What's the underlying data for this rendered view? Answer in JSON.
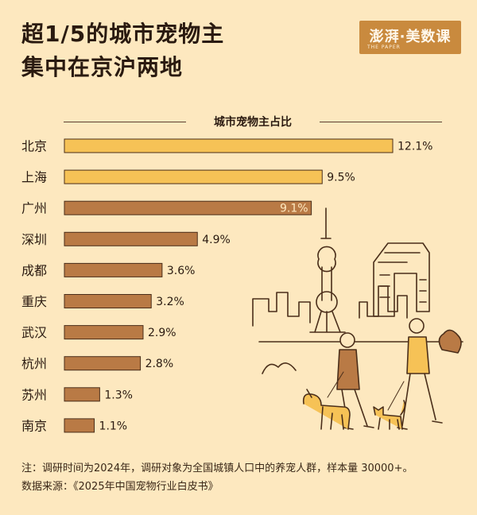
{
  "header": {
    "title_line1": "超1/5的城市宠物主",
    "title_line2": "集中在京沪两地"
  },
  "logo": {
    "text": "澎湃·美数课",
    "subtext": "THE PAPER"
  },
  "chart_data": {
    "type": "bar",
    "orientation": "horizontal",
    "title": "城市宠物主占比",
    "categories": [
      "北京",
      "上海",
      "广州",
      "深圳",
      "成都",
      "重庆",
      "武汉",
      "杭州",
      "苏州",
      "南京"
    ],
    "values": [
      12.1,
      9.5,
      9.1,
      4.9,
      3.6,
      3.2,
      2.9,
      2.8,
      1.3,
      1.1
    ],
    "value_labels": [
      "12.1%",
      "9.5%",
      "9.1%",
      "4.9%",
      "3.6%",
      "3.2%",
      "2.9%",
      "2.8%",
      "1.3%",
      "1.1%"
    ],
    "unit": "%",
    "colors": {
      "highlight": "#f6c256",
      "normal": "#b97a45",
      "outline": "#4a2e1a"
    },
    "highlight_count": 2,
    "xlabel": "",
    "ylabel": ""
  },
  "footer": {
    "note": "注：调研时间为2024年，调研对象为全国城镇人口中的养宠人群，样本量 30000+。",
    "source": "数据来源：《2025年中国宠物行业白皮书》"
  },
  "colors": {
    "background": "#fde8bf",
    "text": "#2a1a10"
  }
}
